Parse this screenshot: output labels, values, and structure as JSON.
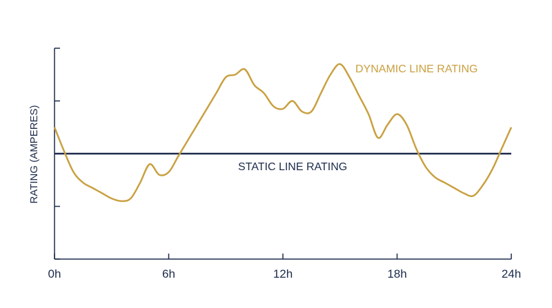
{
  "chart_data": {
    "type": "line",
    "title": "",
    "xlabel": "",
    "ylabel": "RATING (AMPERES)",
    "xlim": [
      0,
      24
    ],
    "ylim": [
      -2,
      2
    ],
    "x_ticks": [
      0,
      6,
      12,
      18,
      24
    ],
    "x_tick_labels": [
      "0h",
      "6h",
      "12h",
      "18h",
      "24h"
    ],
    "y_ticks": [
      -2,
      -1,
      0,
      1,
      2
    ],
    "grid": false,
    "series": [
      {
        "name": "DYNAMIC LINE RATING",
        "color": "#c9a040",
        "x": [
          0,
          0.5,
          1,
          1.5,
          2,
          2.5,
          3,
          3.5,
          4,
          4.5,
          5,
          5.5,
          6,
          6.5,
          7,
          7.5,
          8,
          8.5,
          9,
          9.5,
          10,
          10.5,
          11,
          11.5,
          12,
          12.5,
          13,
          13.5,
          14,
          14.5,
          15,
          15.5,
          16,
          16.5,
          17,
          17.5,
          18,
          18.5,
          19,
          19.5,
          20,
          20.5,
          21,
          21.5,
          22,
          22.5,
          23,
          23.5,
          24
        ],
        "y": [
          0.5,
          0.05,
          -0.35,
          -0.55,
          -0.65,
          -0.75,
          -0.85,
          -0.9,
          -0.85,
          -0.55,
          -0.2,
          -0.4,
          -0.35,
          -0.05,
          0.25,
          0.55,
          0.85,
          1.15,
          1.45,
          1.5,
          1.6,
          1.3,
          1.15,
          0.9,
          0.85,
          1.0,
          0.8,
          0.8,
          1.15,
          1.5,
          1.7,
          1.45,
          1.1,
          0.75,
          0.3,
          0.55,
          0.75,
          0.55,
          0.1,
          -0.25,
          -0.45,
          -0.55,
          -0.65,
          -0.75,
          -0.8,
          -0.6,
          -0.3,
          0.1,
          0.5
        ]
      },
      {
        "name": "STATIC LINE RATING",
        "color": "#1b2a4a",
        "x": [
          0,
          24
        ],
        "y": [
          0,
          0
        ]
      }
    ]
  }
}
